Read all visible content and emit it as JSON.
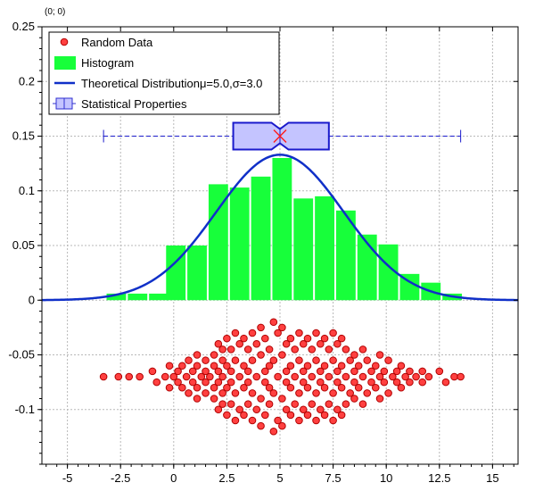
{
  "coordinate_readout": "(0; 0)",
  "chart_data": {
    "type": "bar",
    "title": "",
    "xlabel": "",
    "ylabel": "",
    "xlim": [
      -6.2,
      16.2
    ],
    "ylim": [
      -0.15,
      0.25
    ],
    "grid": true,
    "legend_position": "top-left",
    "x_ticks": [
      -5,
      -2.5,
      0,
      2.5,
      5,
      7.5,
      10,
      12.5,
      15
    ],
    "x_tick_labels": [
      "-5",
      "-2.5",
      "0",
      "2.5",
      "5",
      "7.5",
      "10",
      "12.5",
      "15"
    ],
    "y_ticks": [
      -0.1,
      -0.05,
      0,
      0.05,
      0.1,
      0.15,
      0.2,
      0.25
    ],
    "y_tick_labels": [
      "-0.1",
      "-0.05",
      "0",
      "0.05",
      "0.1",
      "0.15",
      "0.2",
      "0.25"
    ],
    "legend": [
      {
        "label": "Random Data",
        "symbol": "circle",
        "color": "#ff4040"
      },
      {
        "label": "Histogram",
        "symbol": "rect",
        "color": "#17ff3a"
      },
      {
        "label": "Theoretical Distributionμ=5.0,σ=3.0",
        "symbol": "line",
        "color": "#1030c8"
      },
      {
        "label": "Statistical Properties",
        "symbol": "boxplot",
        "color": "#3030d0"
      }
    ],
    "histogram": {
      "color": "#17ff3a",
      "bin_width": 1.0,
      "bins": [
        {
          "x_start": -3.2,
          "value": 0.006
        },
        {
          "x_start": -2.2,
          "value": 0.006
        },
        {
          "x_start": -1.2,
          "value": 0.006
        },
        {
          "x_start": -0.4,
          "value": 0.05
        },
        {
          "x_start": 0.6,
          "value": 0.05
        },
        {
          "x_start": 1.6,
          "value": 0.106
        },
        {
          "x_start": 2.6,
          "value": 0.103
        },
        {
          "x_start": 3.6,
          "value": 0.113
        },
        {
          "x_start": 4.6,
          "value": 0.13
        },
        {
          "x_start": 5.6,
          "value": 0.093
        },
        {
          "x_start": 6.6,
          "value": 0.095
        },
        {
          "x_start": 7.6,
          "value": 0.082
        },
        {
          "x_start": 8.6,
          "value": 0.06
        },
        {
          "x_start": 9.6,
          "value": 0.051
        },
        {
          "x_start": 10.6,
          "value": 0.024
        },
        {
          "x_start": 11.6,
          "value": 0.016
        },
        {
          "x_start": 12.6,
          "value": 0.006
        }
      ]
    },
    "theoretical_distribution": {
      "mu": 5.0,
      "sigma": 3.0,
      "color": "#1030c8",
      "x_from": -6.2,
      "x_to": 16.2
    },
    "box_plot": {
      "y": 0.15,
      "whisker_low": -3.3,
      "q1": 2.8,
      "median": 5.0,
      "mean": 5.0,
      "q3": 7.3,
      "whisker_high": 13.5,
      "notch_low": 4.6,
      "notch_high": 5.4,
      "fill": "#c4c4ff",
      "stroke": "#1a1acc",
      "mean_marker_color": "#ff2020"
    },
    "random_data": {
      "color": "#ff4040",
      "points": [
        [
          -3.3,
          -0.07
        ],
        [
          -2.6,
          -0.07
        ],
        [
          -2.1,
          -0.07
        ],
        [
          -1.6,
          -0.07
        ],
        [
          -1.0,
          -0.065
        ],
        [
          -0.8,
          -0.075
        ],
        [
          -0.4,
          -0.07
        ],
        [
          -0.2,
          -0.06
        ],
        [
          -0.2,
          -0.08
        ],
        [
          0.0,
          -0.07
        ],
        [
          0.2,
          -0.065
        ],
        [
          0.2,
          -0.075
        ],
        [
          0.4,
          -0.06
        ],
        [
          0.4,
          -0.08
        ],
        [
          0.6,
          -0.07
        ],
        [
          0.7,
          -0.055
        ],
        [
          0.7,
          -0.085
        ],
        [
          0.9,
          -0.065
        ],
        [
          0.9,
          -0.075
        ],
        [
          1.1,
          -0.05
        ],
        [
          1.1,
          -0.06
        ],
        [
          1.1,
          -0.08
        ],
        [
          1.1,
          -0.09
        ],
        [
          1.3,
          -0.07
        ],
        [
          1.5,
          -0.055
        ],
        [
          1.5,
          -0.065
        ],
        [
          1.5,
          -0.075
        ],
        [
          1.5,
          -0.085
        ],
        [
          1.7,
          -0.07
        ],
        [
          1.9,
          -0.05
        ],
        [
          1.9,
          -0.06
        ],
        [
          1.9,
          -0.08
        ],
        [
          1.9,
          -0.09
        ],
        [
          2.1,
          -0.04
        ],
        [
          2.1,
          -0.065
        ],
        [
          2.1,
          -0.075
        ],
        [
          2.1,
          -0.1
        ],
        [
          2.3,
          -0.045
        ],
        [
          2.3,
          -0.055
        ],
        [
          2.3,
          -0.07
        ],
        [
          2.3,
          -0.085
        ],
        [
          2.3,
          -0.095
        ],
        [
          2.5,
          -0.035
        ],
        [
          2.5,
          -0.06
        ],
        [
          2.5,
          -0.08
        ],
        [
          2.5,
          -0.105
        ],
        [
          2.7,
          -0.045
        ],
        [
          2.7,
          -0.065
        ],
        [
          2.7,
          -0.075
        ],
        [
          2.7,
          -0.095
        ],
        [
          2.9,
          -0.03
        ],
        [
          2.9,
          -0.055
        ],
        [
          2.9,
          -0.085
        ],
        [
          2.9,
          -0.11
        ],
        [
          3.1,
          -0.04
        ],
        [
          3.1,
          -0.07
        ],
        [
          3.1,
          -0.1
        ],
        [
          3.3,
          -0.035
        ],
        [
          3.3,
          -0.06
        ],
        [
          3.3,
          -0.08
        ],
        [
          3.3,
          -0.105
        ],
        [
          3.5,
          -0.045
        ],
        [
          3.5,
          -0.065
        ],
        [
          3.5,
          -0.075
        ],
        [
          3.5,
          -0.095
        ],
        [
          3.7,
          -0.03
        ],
        [
          3.7,
          -0.055
        ],
        [
          3.7,
          -0.085
        ],
        [
          3.7,
          -0.11
        ],
        [
          3.9,
          -0.04
        ],
        [
          3.9,
          -0.07
        ],
        [
          3.9,
          -0.1
        ],
        [
          4.1,
          -0.025
        ],
        [
          4.1,
          -0.05
        ],
        [
          4.1,
          -0.09
        ],
        [
          4.1,
          -0.115
        ],
        [
          4.3,
          -0.035
        ],
        [
          4.3,
          -0.065
        ],
        [
          4.3,
          -0.075
        ],
        [
          4.3,
          -0.105
        ],
        [
          4.5,
          -0.045
        ],
        [
          4.5,
          -0.06
        ],
        [
          4.5,
          -0.08
        ],
        [
          4.5,
          -0.095
        ],
        [
          4.7,
          -0.02
        ],
        [
          4.7,
          -0.055
        ],
        [
          4.7,
          -0.085
        ],
        [
          4.7,
          -0.12
        ],
        [
          4.9,
          -0.03
        ],
        [
          4.9,
          -0.07
        ],
        [
          4.9,
          -0.11
        ],
        [
          5.1,
          -0.025
        ],
        [
          5.1,
          -0.05
        ],
        [
          5.1,
          -0.09
        ],
        [
          5.1,
          -0.115
        ],
        [
          5.3,
          -0.04
        ],
        [
          5.3,
          -0.065
        ],
        [
          5.3,
          -0.075
        ],
        [
          5.3,
          -0.1
        ],
        [
          5.5,
          -0.035
        ],
        [
          5.5,
          -0.06
        ],
        [
          5.5,
          -0.08
        ],
        [
          5.5,
          -0.105
        ],
        [
          5.7,
          -0.045
        ],
        [
          5.7,
          -0.07
        ],
        [
          5.7,
          -0.095
        ],
        [
          5.9,
          -0.03
        ],
        [
          5.9,
          -0.055
        ],
        [
          5.9,
          -0.085
        ],
        [
          5.9,
          -0.11
        ],
        [
          6.1,
          -0.04
        ],
        [
          6.1,
          -0.065
        ],
        [
          6.1,
          -0.075
        ],
        [
          6.1,
          -0.1
        ],
        [
          6.3,
          -0.035
        ],
        [
          6.3,
          -0.06
        ],
        [
          6.3,
          -0.08
        ],
        [
          6.3,
          -0.105
        ],
        [
          6.5,
          -0.045
        ],
        [
          6.5,
          -0.07
        ],
        [
          6.5,
          -0.095
        ],
        [
          6.7,
          -0.03
        ],
        [
          6.7,
          -0.055
        ],
        [
          6.7,
          -0.085
        ],
        [
          6.7,
          -0.11
        ],
        [
          6.9,
          -0.04
        ],
        [
          6.9,
          -0.065
        ],
        [
          6.9,
          -0.075
        ],
        [
          6.9,
          -0.1
        ],
        [
          7.1,
          -0.035
        ],
        [
          7.1,
          -0.06
        ],
        [
          7.1,
          -0.08
        ],
        [
          7.1,
          -0.105
        ],
        [
          7.3,
          -0.045
        ],
        [
          7.3,
          -0.07
        ],
        [
          7.3,
          -0.095
        ],
        [
          7.5,
          -0.03
        ],
        [
          7.5,
          -0.055
        ],
        [
          7.5,
          -0.085
        ],
        [
          7.5,
          -0.11
        ],
        [
          7.7,
          -0.04
        ],
        [
          7.7,
          -0.065
        ],
        [
          7.7,
          -0.075
        ],
        [
          7.7,
          -0.1
        ],
        [
          7.9,
          -0.035
        ],
        [
          7.9,
          -0.06
        ],
        [
          7.9,
          -0.08
        ],
        [
          7.9,
          -0.105
        ],
        [
          8.1,
          -0.045
        ],
        [
          8.1,
          -0.07
        ],
        [
          8.1,
          -0.095
        ],
        [
          8.3,
          -0.055
        ],
        [
          8.3,
          -0.085
        ],
        [
          8.5,
          -0.05
        ],
        [
          8.5,
          -0.065
        ],
        [
          8.5,
          -0.075
        ],
        [
          8.5,
          -0.09
        ],
        [
          8.7,
          -0.06
        ],
        [
          8.7,
          -0.08
        ],
        [
          8.9,
          -0.045
        ],
        [
          8.9,
          -0.07
        ],
        [
          8.9,
          -0.095
        ],
        [
          9.1,
          -0.055
        ],
        [
          9.1,
          -0.085
        ],
        [
          9.3,
          -0.065
        ],
        [
          9.3,
          -0.075
        ],
        [
          9.5,
          -0.06
        ],
        [
          9.5,
          -0.08
        ],
        [
          9.7,
          -0.05
        ],
        [
          9.7,
          -0.07
        ],
        [
          9.7,
          -0.09
        ],
        [
          9.9,
          -0.065
        ],
        [
          9.9,
          -0.075
        ],
        [
          10.1,
          -0.055
        ],
        [
          10.1,
          -0.085
        ],
        [
          10.3,
          -0.07
        ],
        [
          10.5,
          -0.065
        ],
        [
          10.5,
          -0.075
        ],
        [
          10.7,
          -0.06
        ],
        [
          10.7,
          -0.08
        ],
        [
          10.9,
          -0.07
        ],
        [
          11.1,
          -0.065
        ],
        [
          11.1,
          -0.075
        ],
        [
          11.4,
          -0.07
        ],
        [
          11.7,
          -0.065
        ],
        [
          11.7,
          -0.075
        ],
        [
          12.0,
          -0.07
        ],
        [
          12.5,
          -0.065
        ],
        [
          12.8,
          -0.075
        ],
        [
          13.2,
          -0.07
        ],
        [
          13.5,
          -0.07
        ]
      ]
    }
  }
}
